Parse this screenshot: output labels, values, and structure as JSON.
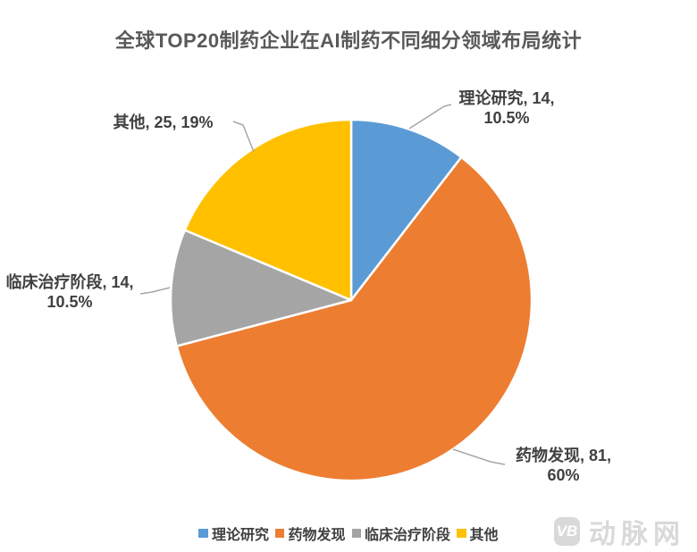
{
  "chart_data": {
    "type": "pie",
    "title": "全球TOP20制药企业在AI制药不同细分领域布局统计",
    "total": 134,
    "start_angle_deg": 0,
    "direction": "clockwise",
    "legend_position": "bottom",
    "slices": [
      {
        "name": "理论研究",
        "value": 14,
        "percent_label": "10.5%",
        "color": "#5B9BD5",
        "label_line1": "理论研究, 14,",
        "label_line2": "10.5%"
      },
      {
        "name": "药物发现",
        "value": 81,
        "percent_label": "60%",
        "color": "#ED7D31",
        "label_line1": "药物发现, 81,",
        "label_line2": "60%"
      },
      {
        "name": "临床治疗阶段",
        "value": 14,
        "percent_label": "10.5%",
        "color": "#A5A5A5",
        "label_line1": "临床治疗阶段, 14,",
        "label_line2": "10.5%"
      },
      {
        "name": "其他",
        "value": 25,
        "percent_label": "19%",
        "color": "#FFC000",
        "label_line1": "其他, 25, 19%",
        "label_line2": ""
      }
    ]
  },
  "watermark": {
    "badge": "VB",
    "text": "动脉网"
  },
  "colors": {
    "title_text": "#595959",
    "label_text": "#404040",
    "leader_line": "#A6A6A6",
    "slice_border": "#FFFFFF",
    "watermark": "#D9D9D9",
    "background": "#FFFFFF"
  }
}
